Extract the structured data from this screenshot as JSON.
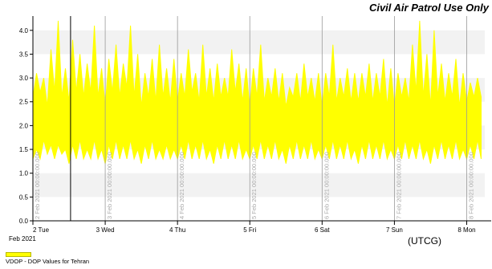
{
  "chart_data": {
    "type": "area",
    "title": "Civil Air Patrol Use Only",
    "xlabel": "(UTCG)",
    "ylabel": "",
    "ylim": [
      0,
      4.3
    ],
    "yticks": [
      "0.0",
      "0.5",
      "1.0",
      "1.5",
      "2.0",
      "2.5",
      "3.0",
      "3.5",
      "4.0"
    ],
    "ytick_values": [
      0,
      0.5,
      1.0,
      1.5,
      2.0,
      2.5,
      3.0,
      3.5,
      4.0
    ],
    "xlim": [
      "2021-02-02T00:00",
      "2021-02-08T06:00"
    ],
    "xticks": [
      {
        "date": "2021-02-02",
        "label": "2 Tue"
      },
      {
        "date": "2021-02-03",
        "label": "3 Wed"
      },
      {
        "date": "2021-02-04",
        "label": "4 Thu"
      },
      {
        "date": "2021-02-05",
        "label": "5 Fri"
      },
      {
        "date": "2021-02-06",
        "label": "6 Sat"
      },
      {
        "date": "2021-02-07",
        "label": "7 Sun"
      },
      {
        "date": "2021-02-08",
        "label": "8 Mon"
      }
    ],
    "xtick_sublabel": "Feb 2021",
    "day_markers": [
      {
        "date": "2021-02-02",
        "label": "2 Feb 2021 00:00:00.000"
      },
      {
        "date": "2021-02-03",
        "label": "3 Feb 2021 00:00:00.000"
      },
      {
        "date": "2021-02-04",
        "label": "4 Feb 2021 00:00:00.000"
      },
      {
        "date": "2021-02-05",
        "label": "5 Feb 2021 00:00:00.000"
      },
      {
        "date": "2021-02-06",
        "label": "6 Feb 2021 00:00:00.000"
      },
      {
        "date": "2021-02-07",
        "label": "7 Feb 2021 00:00:00.000"
      },
      {
        "date": "2021-02-08",
        "label": "8 Feb 2021 00:00:00.000"
      }
    ],
    "cursor_line": "2021-02-02T12:30",
    "series": [
      {
        "name": "VDOP - DOP Values for Tehran",
        "color": "#ffff00",
        "x": [
          "2021-02-02T00:00",
          "2021-02-02T01:12",
          "2021-02-02T02:24",
          "2021-02-02T03:36",
          "2021-02-02T04:48",
          "2021-02-02T06:00",
          "2021-02-02T07:12",
          "2021-02-02T08:24",
          "2021-02-02T09:36",
          "2021-02-02T10:48",
          "2021-02-02T12:00",
          "2021-02-02T13:12",
          "2021-02-02T14:24",
          "2021-02-02T15:36",
          "2021-02-02T16:48",
          "2021-02-02T18:00",
          "2021-02-02T19:12",
          "2021-02-02T20:24",
          "2021-02-02T21:36",
          "2021-02-02T22:48",
          "2021-02-03T00:00",
          "2021-02-03T01:12",
          "2021-02-03T02:24",
          "2021-02-03T03:36",
          "2021-02-03T04:48",
          "2021-02-03T06:00",
          "2021-02-03T07:12",
          "2021-02-03T08:24",
          "2021-02-03T09:36",
          "2021-02-03T10:48",
          "2021-02-03T12:00",
          "2021-02-03T13:12",
          "2021-02-03T14:24",
          "2021-02-03T15:36",
          "2021-02-03T16:48",
          "2021-02-03T18:00",
          "2021-02-03T19:12",
          "2021-02-03T20:24",
          "2021-02-03T21:36",
          "2021-02-03T22:48",
          "2021-02-04T00:00",
          "2021-02-04T01:12",
          "2021-02-04T02:24",
          "2021-02-04T03:36",
          "2021-02-04T04:48",
          "2021-02-04T06:00",
          "2021-02-04T07:12",
          "2021-02-04T08:24",
          "2021-02-04T09:36",
          "2021-02-04T10:48",
          "2021-02-04T12:00",
          "2021-02-04T13:12",
          "2021-02-04T14:24",
          "2021-02-04T15:36",
          "2021-02-04T16:48",
          "2021-02-04T18:00",
          "2021-02-04T19:12",
          "2021-02-04T20:24",
          "2021-02-04T21:36",
          "2021-02-04T22:48",
          "2021-02-05T00:00",
          "2021-02-05T01:12",
          "2021-02-05T02:24",
          "2021-02-05T03:36",
          "2021-02-05T04:48",
          "2021-02-05T06:00",
          "2021-02-05T07:12",
          "2021-02-05T08:24",
          "2021-02-05T09:36",
          "2021-02-05T10:48",
          "2021-02-05T12:00",
          "2021-02-05T13:12",
          "2021-02-05T14:24",
          "2021-02-05T15:36",
          "2021-02-05T16:48",
          "2021-02-05T18:00",
          "2021-02-05T19:12",
          "2021-02-05T20:24",
          "2021-02-05T21:36",
          "2021-02-05T22:48",
          "2021-02-06T00:00",
          "2021-02-06T01:12",
          "2021-02-06T02:24",
          "2021-02-06T03:36",
          "2021-02-06T04:48",
          "2021-02-06T06:00",
          "2021-02-06T07:12",
          "2021-02-06T08:24",
          "2021-02-06T09:36",
          "2021-02-06T10:48",
          "2021-02-06T12:00",
          "2021-02-06T13:12",
          "2021-02-06T14:24",
          "2021-02-06T15:36",
          "2021-02-06T16:48",
          "2021-02-06T18:00",
          "2021-02-06T19:12",
          "2021-02-06T20:24",
          "2021-02-06T21:36",
          "2021-02-06T22:48",
          "2021-02-07T00:00",
          "2021-02-07T01:12",
          "2021-02-07T02:24",
          "2021-02-07T03:36",
          "2021-02-07T04:48",
          "2021-02-07T06:00",
          "2021-02-07T07:12",
          "2021-02-07T08:24",
          "2021-02-07T09:36",
          "2021-02-07T10:48",
          "2021-02-07T12:00",
          "2021-02-07T13:12",
          "2021-02-07T14:24",
          "2021-02-07T15:36",
          "2021-02-07T16:48",
          "2021-02-07T18:00",
          "2021-02-07T19:12",
          "2021-02-07T20:24",
          "2021-02-07T21:36",
          "2021-02-07T22:48",
          "2021-02-08T00:00",
          "2021-02-08T01:12",
          "2021-02-08T02:24",
          "2021-02-08T03:36",
          "2021-02-08T04:48"
        ],
        "upper": [
          2.6,
          3.1,
          2.7,
          3.0,
          2.4,
          3.6,
          2.7,
          4.2,
          2.6,
          3.2,
          2.5,
          3.8,
          2.7,
          3.5,
          2.6,
          3.3,
          2.7,
          4.1,
          2.6,
          3.2,
          2.4,
          3.4,
          2.7,
          3.7,
          2.6,
          3.3,
          2.8,
          4.1,
          2.6,
          3.5,
          2.4,
          3.1,
          2.6,
          3.4,
          2.5,
          3.7,
          2.6,
          3.2,
          2.5,
          3.4,
          2.5,
          3.1,
          2.6,
          3.6,
          2.7,
          3.1,
          2.5,
          3.7,
          2.6,
          3.2,
          2.5,
          3.3,
          2.6,
          3.0,
          2.6,
          3.6,
          2.7,
          3.3,
          2.5,
          3.2,
          2.4,
          3.2,
          2.6,
          3.7,
          2.5,
          3.0,
          2.6,
          3.2,
          2.5,
          3.1,
          2.4,
          2.8,
          2.6,
          3.1,
          2.5,
          3.3,
          2.6,
          3.0,
          2.5,
          3.1,
          2.4,
          3.1,
          2.6,
          3.7,
          2.5,
          3.0,
          2.6,
          3.2,
          2.5,
          3.1,
          2.5,
          3.1,
          2.6,
          3.3,
          2.5,
          3.1,
          2.6,
          3.4,
          2.4,
          3.2,
          2.4,
          3.1,
          2.6,
          3.0,
          2.5,
          3.7,
          2.7,
          4.2,
          2.6,
          3.5,
          2.4,
          4.0,
          2.6,
          3.3,
          2.5,
          3.1,
          2.6,
          3.4,
          2.4,
          3.1,
          2.5,
          2.9,
          2.6,
          3.0,
          2.6
        ],
        "lower": [
          1.3,
          1.5,
          1.3,
          1.7,
          1.4,
          1.6,
          1.3,
          1.6,
          1.4,
          1.5,
          1.2,
          1.6,
          1.3,
          1.7,
          1.3,
          1.5,
          1.3,
          1.7,
          1.3,
          1.5,
          1.2,
          1.6,
          1.3,
          1.7,
          1.3,
          1.6,
          1.3,
          1.7,
          1.3,
          1.5,
          1.2,
          1.6,
          1.3,
          1.7,
          1.3,
          1.5,
          1.3,
          1.6,
          1.3,
          1.5,
          1.3,
          1.6,
          1.3,
          1.7,
          1.3,
          1.6,
          1.3,
          1.7,
          1.3,
          1.5,
          1.2,
          1.6,
          1.3,
          1.7,
          1.3,
          1.6,
          1.3,
          1.7,
          1.3,
          1.5,
          1.3,
          1.6,
          1.3,
          1.7,
          1.3,
          1.6,
          1.3,
          1.7,
          1.3,
          1.5,
          1.2,
          1.6,
          1.3,
          1.7,
          1.3,
          1.6,
          1.3,
          1.7,
          1.3,
          1.5,
          1.3,
          1.6,
          1.3,
          1.7,
          1.3,
          1.6,
          1.3,
          1.7,
          1.3,
          1.5,
          1.2,
          1.6,
          1.3,
          1.7,
          1.3,
          1.6,
          1.3,
          1.7,
          1.3,
          1.5,
          1.3,
          1.6,
          1.3,
          1.7,
          1.3,
          1.6,
          1.3,
          1.7,
          1.3,
          1.5,
          1.2,
          1.6,
          1.3,
          1.7,
          1.3,
          1.6,
          1.3,
          1.7,
          1.3,
          1.5,
          1.3,
          1.6,
          1.3,
          1.7,
          1.3
        ]
      }
    ],
    "grid": true,
    "legend": "bottom-left",
    "colors": {
      "band": "#f2f2f2",
      "axis": "#000000",
      "day_line": "#999999",
      "day_text": "#aaaaaa",
      "legend_border": "#b8b800"
    }
  }
}
